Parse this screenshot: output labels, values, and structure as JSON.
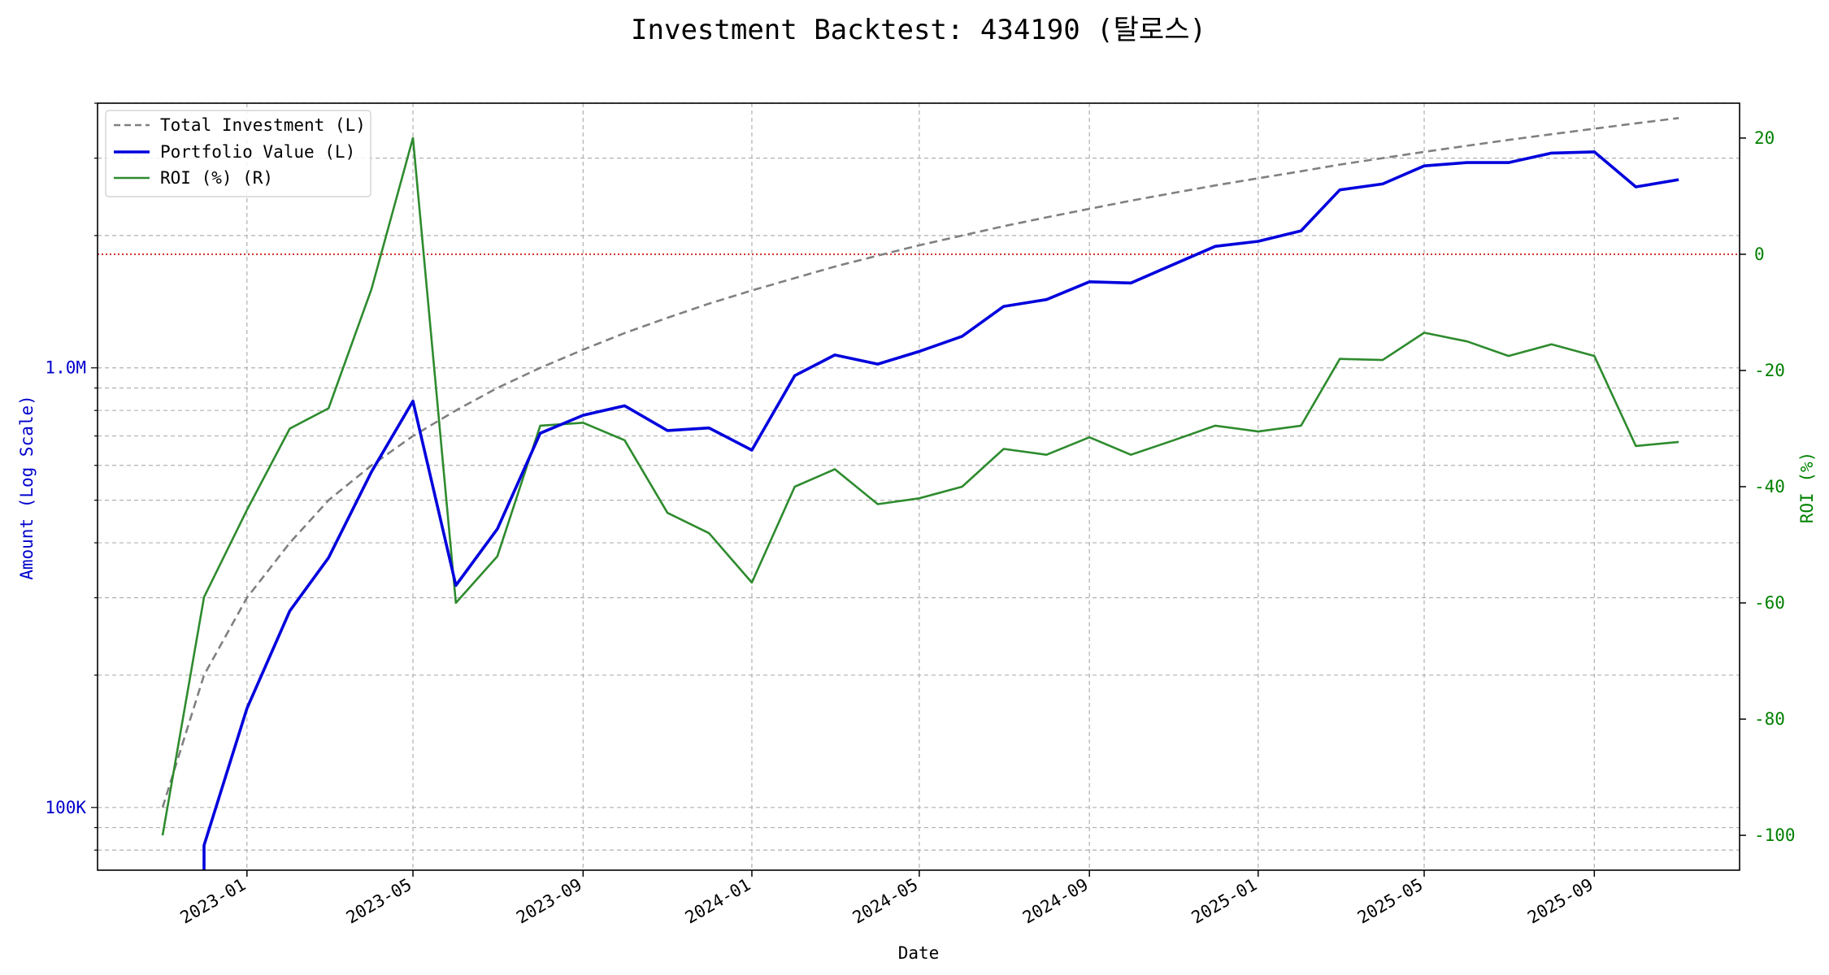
{
  "chart_data": {
    "type": "line",
    "title": "Investment Backtest: 434190 (탈로스)",
    "xlabel": "Date",
    "ylabel_left": "Amount (Log Scale)",
    "ylabel_right": "ROI (%)",
    "left_scale": "log",
    "left_ylim": [
      72000,
      4000000
    ],
    "right_ylim": [
      -106,
      26
    ],
    "x_range": [
      "2022-09-15",
      "2025-12-15"
    ],
    "x_ticks": [
      "2023-01",
      "2023-05",
      "2023-09",
      "2024-01",
      "2024-05",
      "2024-09",
      "2025-01",
      "2025-05",
      "2025-09"
    ],
    "left_ticks": [
      {
        "value": 100000,
        "label": "100K"
      },
      {
        "value": 1000000,
        "label": "1.0M"
      }
    ],
    "right_ticks": [
      20,
      0,
      -20,
      -40,
      -60,
      -80,
      -100
    ],
    "grid": true,
    "legend_position": "top-left",
    "reference_line": {
      "axis": "right",
      "value": 0,
      "color": "#cc0000"
    },
    "colors": {
      "investment": "#808080",
      "portfolio": "#0000dd",
      "roi": "#2e8b2e",
      "left_axis": "#0000cc",
      "right_axis": "#008000"
    },
    "dates": [
      "2022-11",
      "2022-12",
      "2023-01",
      "2023-02",
      "2023-03",
      "2023-04",
      "2023-05",
      "2023-06",
      "2023-07",
      "2023-08",
      "2023-09",
      "2023-10",
      "2023-11",
      "2023-12",
      "2024-01",
      "2024-02",
      "2024-03",
      "2024-04",
      "2024-05",
      "2024-06",
      "2024-07",
      "2024-08",
      "2024-09",
      "2024-10",
      "2024-11",
      "2024-12",
      "2025-01",
      "2025-02",
      "2025-03",
      "2025-04",
      "2025-05",
      "2025-06",
      "2025-07",
      "2025-08",
      "2025-09",
      "2025-10",
      "2025-11"
    ],
    "series": [
      {
        "name": "Total Investment (L)",
        "axis": "left",
        "style": "dashed",
        "values": [
          100000,
          200000,
          300000,
          400000,
          500000,
          600000,
          700000,
          800000,
          900000,
          1000000,
          1100000,
          1200000,
          1300000,
          1400000,
          1500000,
          1600000,
          1700000,
          1800000,
          1900000,
          2000000,
          2100000,
          2200000,
          2300000,
          2400000,
          2500000,
          2600000,
          2700000,
          2800000,
          2900000,
          3000000,
          3100000,
          3200000,
          3300000,
          3400000,
          3500000,
          3600000,
          3700000
        ]
      },
      {
        "name": "Portfolio Value (L)",
        "axis": "left",
        "style": "solid",
        "values": [
          null,
          82000,
          168000,
          280000,
          370000,
          580000,
          840000,
          320000,
          430000,
          710000,
          780000,
          820000,
          720000,
          730000,
          650000,
          960000,
          1070000,
          1020000,
          1090000,
          1180000,
          1380000,
          1430000,
          1570000,
          1560000,
          1720000,
          1890000,
          1940000,
          2050000,
          2540000,
          2620000,
          2880000,
          2930000,
          2930000,
          3080000,
          3100000,
          2580000,
          2680000
        ]
      },
      {
        "name": "ROI (%) (R)",
        "axis": "right",
        "style": "solid",
        "values": [
          -100,
          -59,
          -44,
          -30,
          -26.5,
          -6,
          20,
          -60,
          -52,
          -29.5,
          -29,
          -32,
          -44.5,
          -48,
          -56.5,
          -40,
          -37,
          -43,
          -42,
          -40,
          -33.5,
          -34.5,
          -31.5,
          -34.5,
          -32,
          -29.5,
          -30.5,
          -29.5,
          -18,
          -18.2,
          -13.5,
          -15,
          -17.5,
          -15.5,
          -17.5,
          -33,
          -32.3
        ]
      }
    ]
  }
}
